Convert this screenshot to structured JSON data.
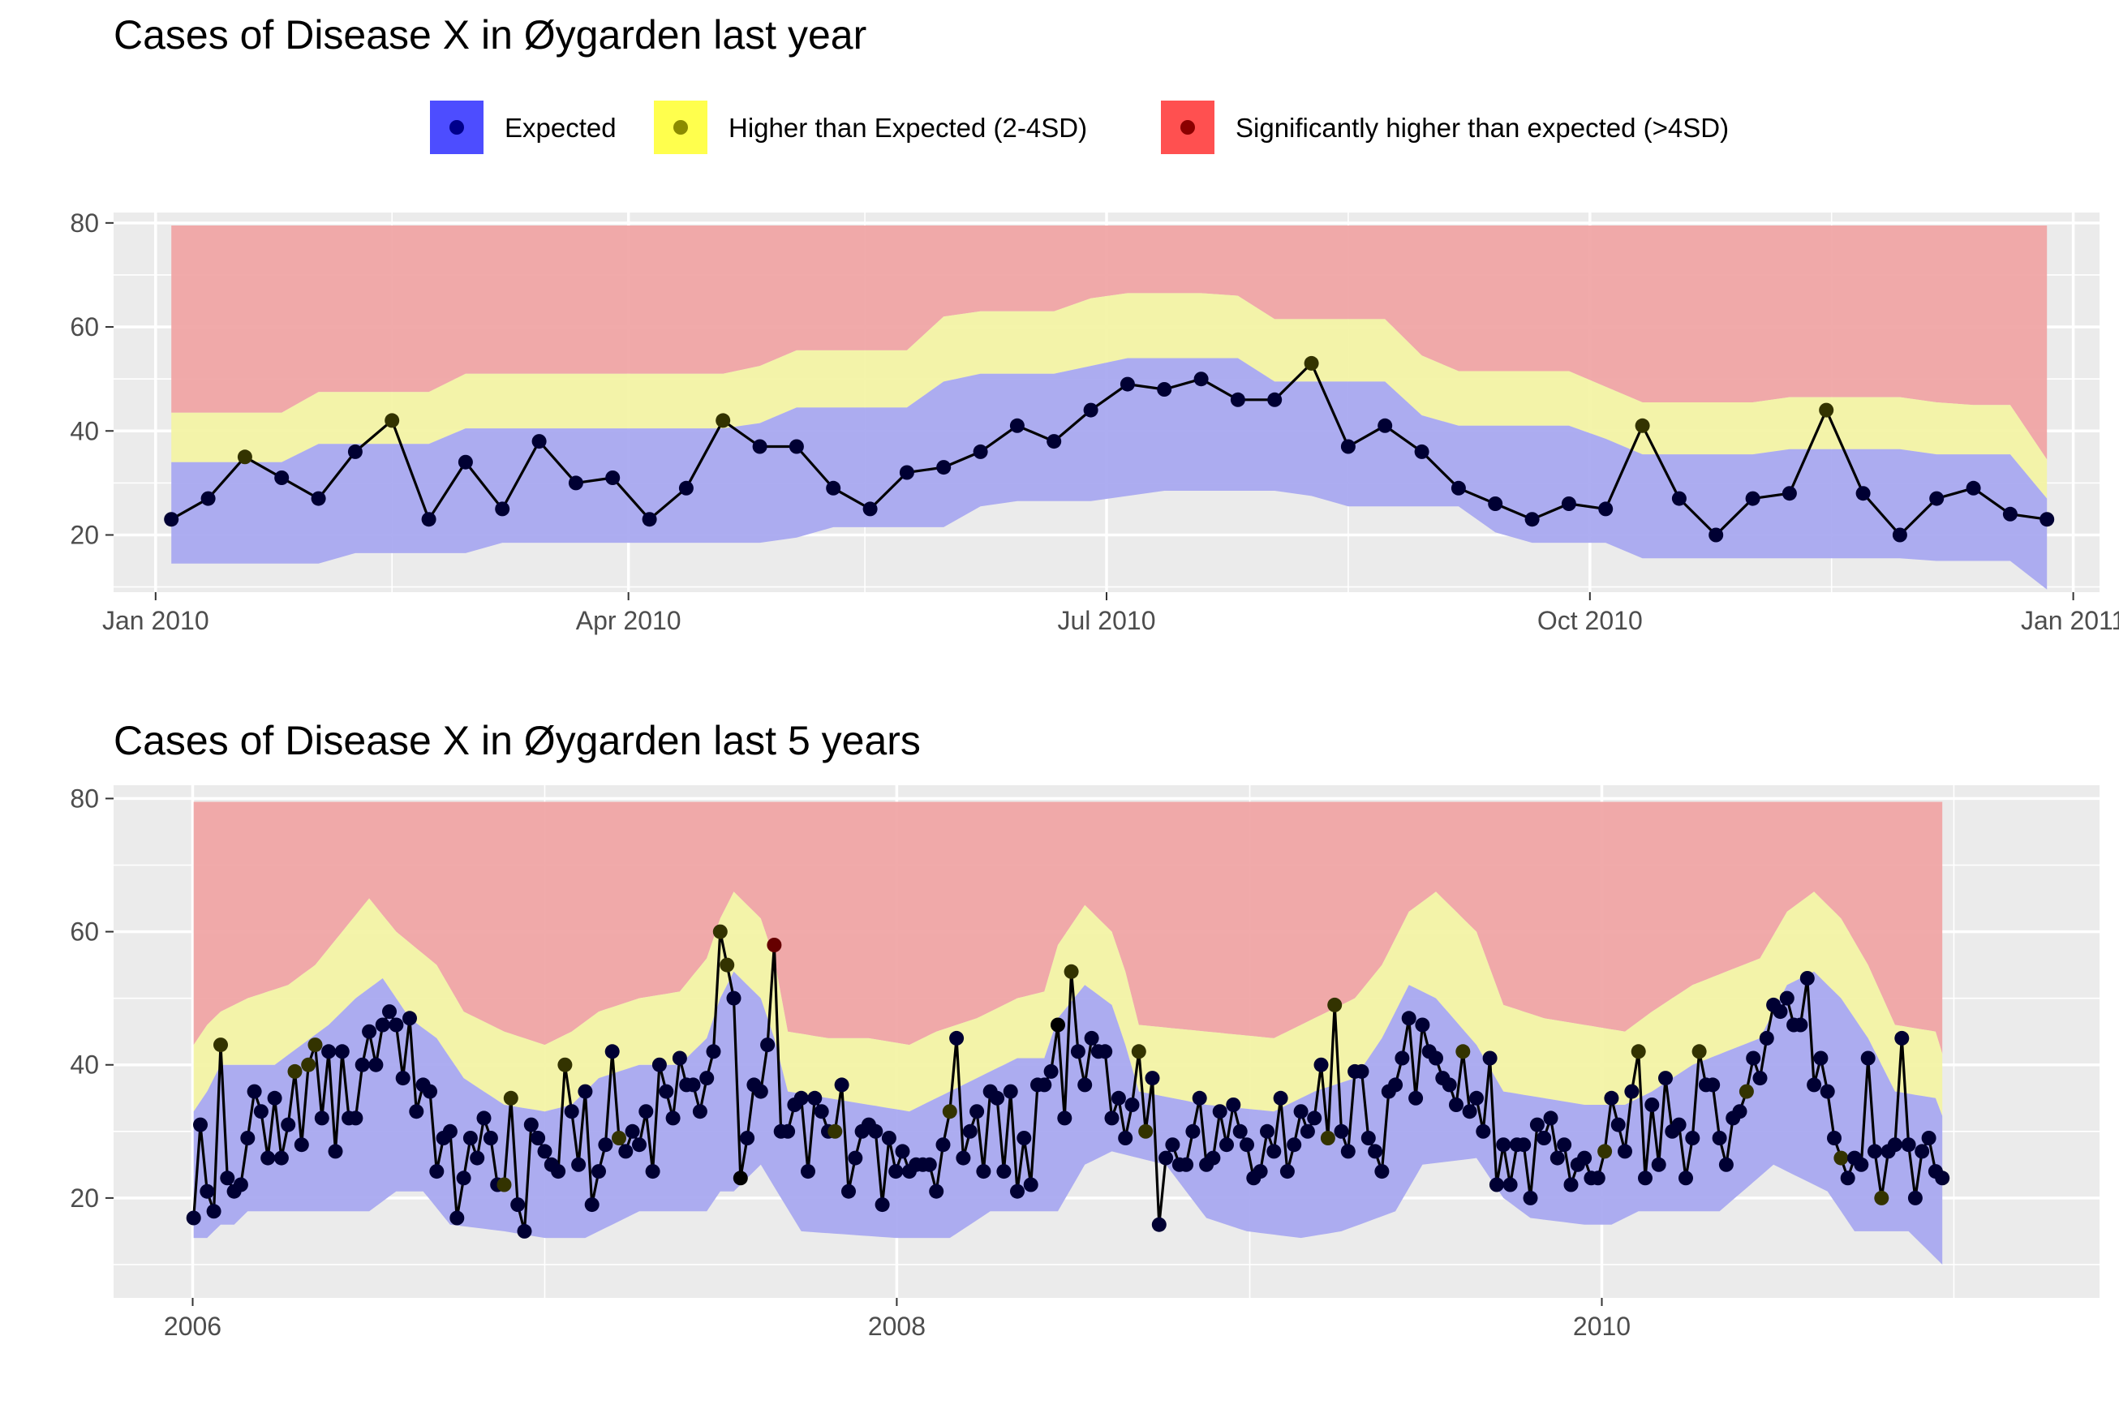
{
  "legend": {
    "items": [
      {
        "label": "Expected",
        "fill": "#4d4dff",
        "dot": "#00008b"
      },
      {
        "label": "Higher than Expected (2-4SD)",
        "fill": "#ffff4d",
        "dot": "#8b8b00"
      },
      {
        "label": "Significantly higher than expected (>4SD)",
        "fill": "#ff5050",
        "dot": "#8b0000"
      }
    ]
  },
  "colors": {
    "panel_bg": "#ebebeb",
    "grid": "#ffffff",
    "band_expected": "#a6a6f0",
    "band_higher": "#f3f3a3",
    "band_significant": "#f0a3a3",
    "line": "#000000",
    "dot_expected": "#000033",
    "dot_higher": "#333300",
    "dot_significant": "#660000"
  },
  "chart_data": [
    {
      "type": "line",
      "title": "Cases of Disease X in Øygarden last year",
      "xlabel": "",
      "ylabel": "",
      "x_unit": "week",
      "x_range": [
        "2009-12-24",
        "2011-01-06"
      ],
      "ylim": [
        9,
        82
      ],
      "y_ticks": [
        20,
        40,
        60,
        80
      ],
      "x_ticks": [
        {
          "date": "2010-01-01",
          "label": "Jan 2010"
        },
        {
          "date": "2010-04-01",
          "label": "Apr 2010"
        },
        {
          "date": "2010-07-01",
          "label": "Jul 2010"
        },
        {
          "date": "2010-10-01",
          "label": "Oct 2010"
        },
        {
          "date": "2011-01-01",
          "label": "Jan 2011"
        }
      ],
      "x_minor": [
        "2010-02-15",
        "2010-05-16",
        "2010-08-16",
        "2010-11-16"
      ],
      "x_start": "2010-01-04",
      "cases": [
        23,
        27,
        35,
        31,
        27,
        36,
        42,
        23,
        34,
        25,
        38,
        30,
        31,
        23,
        29,
        42,
        37,
        37,
        29,
        25,
        32,
        33,
        36,
        41,
        38,
        44,
        49,
        48,
        50,
        46,
        46,
        53,
        37,
        41,
        36,
        29,
        26,
        23,
        26,
        25,
        41,
        27,
        20,
        27,
        28,
        44,
        28,
        20,
        27,
        29,
        24,
        23
      ],
      "status": [
        "expected",
        "expected",
        "higher",
        "expected",
        "expected",
        "expected",
        "higher",
        "expected",
        "expected",
        "expected",
        "expected",
        "expected",
        "expected",
        "expected",
        "expected",
        "higher",
        "expected",
        "expected",
        "expected",
        "expected",
        "expected",
        "expected",
        "expected",
        "expected",
        "expected",
        "expected",
        "expected",
        "expected",
        "expected",
        "expected",
        "expected",
        "higher",
        "expected",
        "expected",
        "expected",
        "expected",
        "expected",
        "expected",
        "expected",
        "expected",
        "higher",
        "expected",
        "expected",
        "expected",
        "expected",
        "higher",
        "expected",
        "expected",
        "expected",
        "expected",
        "expected",
        "expected"
      ],
      "band_lower": [
        14.5,
        14.5,
        14.5,
        14.5,
        14.5,
        16.5,
        16.5,
        16.5,
        16.5,
        18.5,
        18.5,
        18.5,
        18.5,
        18.5,
        18.5,
        18.5,
        18.5,
        19.5,
        21.5,
        21.5,
        21.5,
        21.5,
        25.5,
        26.5,
        26.5,
        26.5,
        27.5,
        28.5,
        28.5,
        28.5,
        28.5,
        27.5,
        25.5,
        25.5,
        25.5,
        25.5,
        20.5,
        18.5,
        18.5,
        18.5,
        15.5,
        15.5,
        15.5,
        15.5,
        15.5,
        15.5,
        15.5,
        15.5,
        15,
        15,
        15,
        9.5
      ],
      "band_upper": [
        34,
        34,
        34,
        34,
        37.5,
        37.5,
        37.5,
        37.5,
        40.5,
        40.5,
        40.5,
        40.5,
        40.5,
        40.5,
        40.5,
        40.5,
        41.5,
        44.5,
        44.5,
        44.5,
        44.5,
        49.5,
        51,
        51,
        51,
        52.5,
        54,
        54,
        54,
        54,
        49.5,
        49.5,
        49.5,
        49.5,
        43,
        41,
        41,
        41,
        41,
        38.5,
        35.5,
        35.5,
        35.5,
        35.5,
        36.5,
        36.5,
        36.5,
        36.5,
        35.5,
        35.5,
        35.5,
        27
      ],
      "band_high": [
        43.5,
        43.5,
        43.5,
        43.5,
        47.5,
        47.5,
        47.5,
        47.5,
        51,
        51,
        51,
        51,
        51,
        51,
        51,
        51,
        52.5,
        55.5,
        55.5,
        55.5,
        55.5,
        62,
        63,
        63,
        63,
        65.5,
        66.5,
        66.5,
        66.5,
        66,
        61.5,
        61.5,
        61.5,
        61.5,
        54.5,
        51.5,
        51.5,
        51.5,
        51.5,
        48.5,
        45.5,
        45.5,
        45.5,
        45.5,
        46.5,
        46.5,
        46.5,
        46.5,
        45.5,
        45,
        45,
        34.5
      ],
      "band_top": 79.5
    },
    {
      "type": "line",
      "title": "Cases of Disease X in Øygarden last 5 years",
      "xlabel": "",
      "ylabel": "",
      "x_unit": "week",
      "x_range": [
        "2005-10-11",
        "2011-06-01"
      ],
      "ylim": [
        5,
        82
      ],
      "y_ticks": [
        20,
        40,
        60,
        80
      ],
      "x_ticks": [
        {
          "date": "2006-01-01",
          "label": "2006"
        },
        {
          "date": "2008-01-01",
          "label": "2008"
        },
        {
          "date": "2010-01-01",
          "label": "2010"
        }
      ],
      "x_minor": [
        "2007-01-01",
        "2009-01-01",
        "2011-01-01"
      ],
      "x_start": "2006-01-02",
      "cases": [
        17,
        31,
        21,
        18,
        43,
        23,
        21,
        22,
        29,
        36,
        33,
        26,
        35,
        26,
        31,
        39,
        28,
        40,
        43,
        32,
        42,
        27,
        42,
        32,
        32,
        40,
        45,
        40,
        46,
        48,
        46,
        38,
        47,
        33,
        37,
        36,
        24,
        29,
        30,
        17,
        23,
        29,
        26,
        32,
        29,
        22,
        22,
        35,
        19,
        15,
        31,
        29,
        27,
        25,
        24,
        40,
        33,
        25,
        36,
        19,
        24,
        28,
        42,
        29,
        27,
        30,
        28,
        33,
        24,
        40,
        36,
        32,
        41,
        37,
        37,
        33,
        38,
        42,
        60,
        55,
        50,
        23,
        29,
        37,
        36,
        43,
        58,
        30,
        30,
        34,
        35,
        24,
        35,
        33,
        30,
        30,
        37,
        21,
        26,
        30,
        31,
        30,
        19,
        29,
        24,
        27,
        24,
        25,
        25,
        25,
        21,
        28,
        33,
        44,
        26,
        30,
        33,
        24,
        36,
        35,
        24,
        36,
        21,
        29,
        22,
        37,
        37,
        39,
        46,
        32,
        54,
        42,
        37,
        44,
        42,
        42,
        32,
        35,
        29,
        34,
        42,
        30,
        38,
        16,
        26,
        28,
        25,
        25,
        30,
        35,
        25,
        26,
        33,
        28,
        34,
        30,
        28,
        23,
        24,
        30,
        27,
        35,
        24,
        28,
        33,
        30,
        32,
        40,
        29,
        49,
        30,
        27,
        39,
        39,
        29,
        27,
        24,
        36,
        37,
        41,
        47,
        35,
        46,
        42,
        41,
        38,
        37,
        34,
        42,
        33,
        35,
        30,
        41,
        22,
        28,
        22,
        28,
        28,
        20,
        31,
        29,
        32,
        26,
        28,
        22,
        25,
        26,
        23,
        23,
        27,
        35,
        31,
        27,
        36,
        42,
        23,
        34,
        25,
        38,
        30,
        31,
        23,
        29,
        42,
        37,
        37,
        29,
        25,
        32,
        33,
        36,
        41,
        38,
        44,
        49,
        48,
        50,
        46,
        46,
        53,
        37,
        41,
        36,
        29,
        26,
        23,
        26,
        25,
        41,
        27,
        20,
        27,
        28,
        44,
        28,
        20,
        27,
        29,
        24,
        23
      ],
      "significant_idx": [
        86
      ],
      "higher_idx": [
        4,
        15,
        17,
        18,
        46,
        47,
        55,
        63,
        78,
        79,
        95,
        112,
        130,
        140,
        141,
        168,
        169,
        188,
        209,
        214,
        223,
        230,
        244,
        250
      ],
      "lower_idx": [
        81,
        128
      ],
      "band_lower": [
        [
          0,
          14
        ],
        [
          2,
          14
        ],
        [
          4,
          16
        ],
        [
          6,
          16
        ],
        [
          8,
          18
        ],
        [
          26,
          18
        ],
        [
          30,
          21
        ],
        [
          34,
          21
        ],
        [
          38,
          16
        ],
        [
          46,
          15
        ],
        [
          52,
          14
        ],
        [
          58,
          14
        ],
        [
          60,
          15
        ],
        [
          66,
          18
        ],
        [
          76,
          18
        ],
        [
          78,
          21
        ],
        [
          80,
          21
        ],
        [
          84,
          25
        ],
        [
          90,
          15
        ],
        [
          104,
          14
        ],
        [
          112,
          14
        ],
        [
          118,
          18
        ],
        [
          128,
          18
        ],
        [
          132,
          25
        ],
        [
          136,
          27
        ],
        [
          140,
          26
        ],
        [
          144,
          25
        ],
        [
          150,
          17
        ],
        [
          156,
          15
        ],
        [
          164,
          14
        ],
        [
          170,
          15
        ],
        [
          178,
          18
        ],
        [
          182,
          25
        ],
        [
          190,
          26
        ],
        [
          194,
          20
        ],
        [
          198,
          17
        ],
        [
          206,
          16
        ],
        [
          210,
          16
        ],
        [
          214,
          18
        ],
        [
          226,
          18
        ],
        [
          234,
          25
        ],
        [
          242,
          21
        ],
        [
          246,
          15
        ],
        [
          254,
          15
        ],
        [
          260,
          9
        ]
      ],
      "band_upper": [
        [
          0,
          33
        ],
        [
          2,
          36
        ],
        [
          4,
          40
        ],
        [
          8,
          40
        ],
        [
          12,
          40
        ],
        [
          20,
          46
        ],
        [
          24,
          50
        ],
        [
          28,
          53
        ],
        [
          32,
          47
        ],
        [
          36,
          44
        ],
        [
          40,
          38
        ],
        [
          46,
          34
        ],
        [
          52,
          33
        ],
        [
          56,
          34
        ],
        [
          60,
          38
        ],
        [
          66,
          40
        ],
        [
          72,
          40
        ],
        [
          76,
          44
        ],
        [
          78,
          50
        ],
        [
          80,
          54
        ],
        [
          84,
          50
        ],
        [
          86,
          44
        ],
        [
          88,
          36
        ],
        [
          94,
          35
        ],
        [
          100,
          34
        ],
        [
          106,
          33
        ],
        [
          110,
          35
        ],
        [
          116,
          38
        ],
        [
          122,
          41
        ],
        [
          126,
          41
        ],
        [
          128,
          47
        ],
        [
          132,
          52
        ],
        [
          136,
          49
        ],
        [
          138,
          43
        ],
        [
          140,
          36
        ],
        [
          150,
          34
        ],
        [
          160,
          33
        ],
        [
          166,
          36
        ],
        [
          172,
          38
        ],
        [
          176,
          44
        ],
        [
          180,
          52
        ],
        [
          184,
          50
        ],
        [
          190,
          43
        ],
        [
          194,
          36
        ],
        [
          200,
          35
        ],
        [
          206,
          34
        ],
        [
          212,
          34
        ],
        [
          216,
          36
        ],
        [
          222,
          40
        ],
        [
          232,
          44
        ],
        [
          236,
          52
        ],
        [
          240,
          54
        ],
        [
          244,
          50
        ],
        [
          248,
          44
        ],
        [
          252,
          36
        ],
        [
          258,
          35
        ],
        [
          261,
          27
        ]
      ],
      "band_high": [
        [
          0,
          43
        ],
        [
          2,
          46
        ],
        [
          4,
          48
        ],
        [
          8,
          50
        ],
        [
          14,
          52
        ],
        [
          18,
          55
        ],
        [
          22,
          60
        ],
        [
          26,
          65
        ],
        [
          30,
          60
        ],
        [
          36,
          55
        ],
        [
          40,
          48
        ],
        [
          46,
          45
        ],
        [
          52,
          43
        ],
        [
          56,
          45
        ],
        [
          60,
          48
        ],
        [
          66,
          50
        ],
        [
          72,
          51
        ],
        [
          76,
          56
        ],
        [
          78,
          62
        ],
        [
          80,
          66
        ],
        [
          84,
          62
        ],
        [
          86,
          56
        ],
        [
          88,
          45
        ],
        [
          94,
          44
        ],
        [
          100,
          44
        ],
        [
          106,
          43
        ],
        [
          110,
          45
        ],
        [
          116,
          47
        ],
        [
          122,
          50
        ],
        [
          126,
          51
        ],
        [
          128,
          58
        ],
        [
          132,
          64
        ],
        [
          136,
          60
        ],
        [
          138,
          54
        ],
        [
          140,
          46
        ],
        [
          150,
          45
        ],
        [
          160,
          44
        ],
        [
          166,
          47
        ],
        [
          172,
          50
        ],
        [
          176,
          55
        ],
        [
          180,
          63
        ],
        [
          184,
          66
        ],
        [
          190,
          60
        ],
        [
          194,
          49
        ],
        [
          200,
          47
        ],
        [
          206,
          46
        ],
        [
          212,
          45
        ],
        [
          216,
          48
        ],
        [
          222,
          52
        ],
        [
          232,
          56
        ],
        [
          236,
          63
        ],
        [
          240,
          66
        ],
        [
          244,
          62
        ],
        [
          248,
          55
        ],
        [
          252,
          46
        ],
        [
          258,
          45
        ],
        [
          261,
          35
        ]
      ],
      "band_top": 79.5
    }
  ]
}
